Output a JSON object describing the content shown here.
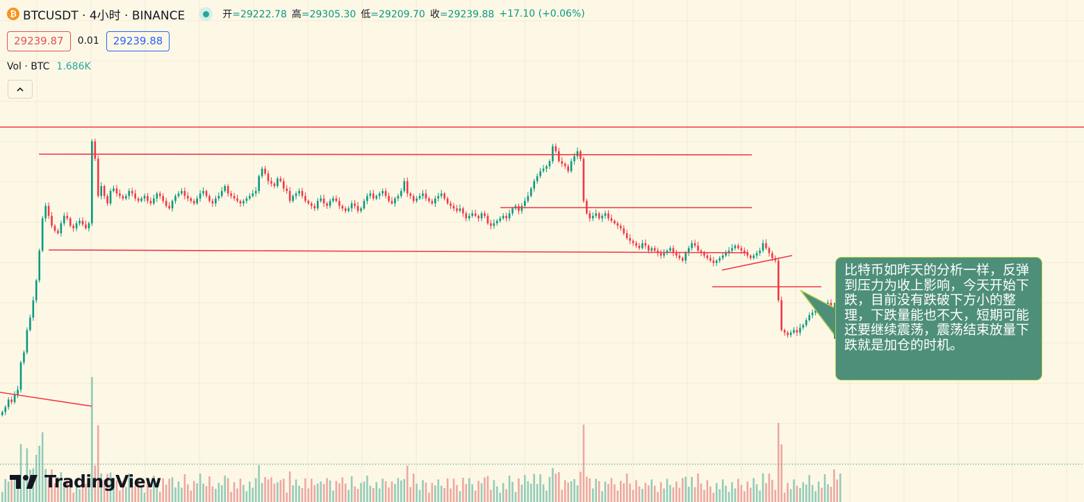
{
  "header": {
    "btc_icon_glyph": "₿",
    "symbol": "BTCUSDT · 4小时 · BINANCE",
    "ohlc": [
      {
        "key": "开",
        "value": "=29222.78"
      },
      {
        "key": "高",
        "value": "=29305.30"
      },
      {
        "key": "低",
        "value": "=29209.70"
      },
      {
        "key": "收",
        "value": "=29239.88"
      }
    ],
    "change": "+17.10 (+0.06%)",
    "sell_price": "29239.87",
    "spread": "0.01",
    "buy_price": "29239.88",
    "volume_label": "Vol · BTC",
    "volume_value": "1.686K"
  },
  "logo_text": "TradingView",
  "annotation": "比特币如昨天的分析一样，反弹到压力为收上影响，今天开始下跌，目前没有跌破下方小的整理，下跌量能也不大，短期可能还要继续震荡，震荡结束放量下跌就是加仓的时机。",
  "colors": {
    "background": "#fdf8e6",
    "up": "#089981",
    "down": "#f23645",
    "volume_up": "#93cbbb",
    "volume_down": "#eda7a2",
    "drawing_line": "#f23645",
    "annotation_bg": "#4e8f79",
    "annotation_border": "#b7d34c"
  },
  "chart_data": {
    "type": "candlestick",
    "symbol": "BTCUSDT",
    "interval": "4小时",
    "exchange": "BINANCE",
    "last_close": 29239.88,
    "approx_price_range": [
      29180,
      30550
    ],
    "grid": true,
    "candles_close_estimated": [
      29450,
      29470,
      29500,
      29490,
      29520,
      29540,
      29650,
      29690,
      29780,
      29830,
      29900,
      29980,
      30100,
      30230,
      30280,
      30240,
      30200,
      30180,
      30170,
      30210,
      30240,
      30230,
      30200,
      30190,
      30210,
      30220,
      30205,
      30190,
      30210,
      30540,
      30470,
      30320,
      30360,
      30320,
      30290,
      30340,
      30350,
      30330,
      30320,
      30310,
      30320,
      30340,
      30330,
      30310,
      30300,
      30310,
      30320,
      30300,
      30290,
      30310,
      30330,
      30320,
      30300,
      30280,
      30270,
      30300,
      30320,
      30330,
      30340,
      30320,
      30310,
      30300,
      30290,
      30310,
      30330,
      30340,
      30320,
      30300,
      30290,
      30310,
      30320,
      30340,
      30360,
      30330,
      30320,
      30310,
      30300,
      30290,
      30300,
      30310,
      30320,
      30330,
      30340,
      30400,
      30430,
      30410,
      30380,
      30370,
      30360,
      30390,
      30380,
      30350,
      30340,
      30300,
      30320,
      30330,
      30340,
      30320,
      30300,
      30290,
      30280,
      30270,
      30300,
      30310,
      30290,
      30280,
      30300,
      30310,
      30300,
      30280,
      30270,
      30260,
      30270,
      30290,
      30280,
      30260,
      30270,
      30300,
      30320,
      30330,
      30310,
      30320,
      30330,
      30340,
      30320,
      30300,
      30290,
      30310,
      30320,
      30340,
      30380,
      30330,
      30320,
      30300,
      30310,
      30320,
      30330,
      30310,
      30300,
      30290,
      30310,
      30320,
      30330,
      30310,
      30290,
      30280,
      30270,
      30260,
      30270,
      30250,
      30230,
      30240,
      30250,
      30240,
      30230,
      30250,
      30240,
      30210,
      30200,
      30210,
      30220,
      30230,
      30240,
      30230,
      30250,
      30270,
      30280,
      30260,
      30280,
      30300,
      30320,
      30350,
      30380,
      30400,
      30420,
      30430,
      30440,
      30460,
      30520,
      30500,
      30460,
      30450,
      30440,
      30420,
      30460,
      30480,
      30500,
      30470,
      30300,
      30250,
      30230,
      30240,
      30250,
      30230,
      30240,
      30250,
      30230,
      30220,
      30210,
      30200,
      30190,
      30170,
      30150,
      30140,
      30130,
      30120,
      30110,
      30130,
      30120,
      30100,
      30110,
      30100,
      30090,
      30080,
      30090,
      30100,
      30110,
      30090,
      30080,
      30070,
      30060,
      30090,
      30110,
      30130,
      30120,
      30100,
      30090,
      30080,
      30070,
      30060,
      30050,
      30060,
      30070,
      30080,
      30090,
      30100,
      30110,
      30120,
      30110,
      30100,
      30090,
      30080,
      30070,
      30080,
      30090,
      30100,
      30130,
      30110,
      30090,
      30070,
      30060,
      29900,
      29780,
      29770,
      29760,
      29770,
      29780,
      29770,
      29790,
      29800,
      29820,
      29840,
      29850,
      29860,
      29870,
      29860,
      29880,
      29890,
      29870,
      29830,
      29800,
      29820
    ]
  }
}
